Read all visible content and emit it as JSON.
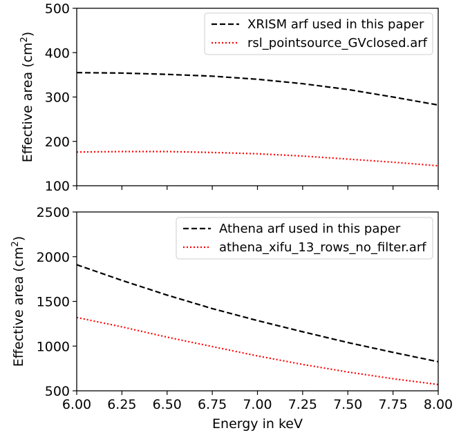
{
  "chart_data": [
    {
      "type": "line",
      "xlabel": "",
      "ylabel": "Effective area (cm",
      "ylabel_sup": "2",
      "ylabel_close": ")",
      "xlim": [
        6.0,
        8.0
      ],
      "ylim": [
        100,
        500
      ],
      "x_ticks": [
        6.0,
        6.25,
        6.5,
        6.75,
        7.0,
        7.25,
        7.5,
        7.75,
        8.0
      ],
      "x_tick_labels_shown": false,
      "y_ticks": [
        100,
        200,
        300,
        400,
        500
      ],
      "y_tick_labels": [
        "100",
        "200",
        "300",
        "400",
        "500"
      ],
      "legend_position": "top-right",
      "x": [
        6.0,
        6.25,
        6.5,
        6.75,
        7.0,
        7.25,
        7.5,
        7.75,
        8.0
      ],
      "series": [
        {
          "name": "XRISM arf used in this paper",
          "color": "#000000",
          "style": "dashed",
          "values": [
            355,
            354,
            351,
            347,
            340,
            330,
            317,
            300,
            282
          ]
        },
        {
          "name": "rsl_pointsource_GVclosed.arf",
          "color": "#ff0000",
          "style": "dotted",
          "values": [
            176,
            177,
            177,
            175,
            172,
            167,
            160,
            153,
            145
          ]
        }
      ]
    },
    {
      "type": "line",
      "xlabel": "Energy in keV",
      "ylabel": "Effective area (cm",
      "ylabel_sup": "2",
      "ylabel_close": ")",
      "xlim": [
        6.0,
        8.0
      ],
      "ylim": [
        500,
        2500
      ],
      "x_ticks": [
        6.0,
        6.25,
        6.5,
        6.75,
        7.0,
        7.25,
        7.5,
        7.75,
        8.0
      ],
      "x_tick_labels": [
        "6.00",
        "6.25",
        "6.50",
        "6.75",
        "7.00",
        "7.25",
        "7.50",
        "7.75",
        "8.00"
      ],
      "x_tick_labels_shown": true,
      "y_ticks": [
        500,
        1000,
        1500,
        2000,
        2500
      ],
      "y_tick_labels": [
        "500",
        "1000",
        "1500",
        "2000",
        "2500"
      ],
      "legend_position": "top-right",
      "x": [
        6.0,
        6.25,
        6.5,
        6.75,
        7.0,
        7.25,
        7.5,
        7.75,
        8.0
      ],
      "series": [
        {
          "name": "Athena arf used in this paper",
          "color": "#000000",
          "style": "dashed",
          "values": [
            1910,
            1735,
            1570,
            1420,
            1285,
            1160,
            1040,
            930,
            825
          ]
        },
        {
          "name": "athena_xifu_13_rows_no_filter.arf",
          "color": "#ff0000",
          "style": "dotted",
          "values": [
            1320,
            1215,
            1100,
            995,
            890,
            795,
            710,
            635,
            570
          ]
        }
      ]
    }
  ]
}
